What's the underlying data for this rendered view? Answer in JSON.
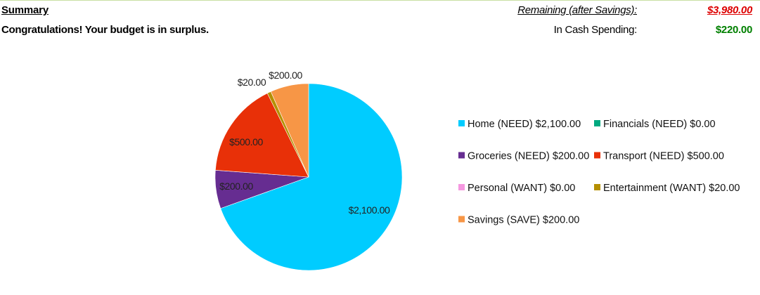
{
  "summary": {
    "title": "Summary",
    "message": "Congratulations! Your budget is in surplus.",
    "remaining_label": "Remaining (after Savings):",
    "remaining_value": "$3,980.00",
    "cash_label": "In Cash Spending:",
    "cash_value": "$220.00"
  },
  "colors": {
    "remaining_value": "#dd0000",
    "cash_value": "#008000"
  },
  "chart_data": {
    "type": "pie",
    "title": "",
    "start_angle_deg": 0,
    "direction": "clockwise",
    "slices": [
      {
        "name": "Home (NEED)",
        "value": 2100,
        "value_label": "$2,100.00",
        "legend": "Home (NEED) $2,100.00",
        "color": "#00ccff",
        "data_label": "$2,100.00"
      },
      {
        "name": "Financials (NEED)",
        "value": 0,
        "value_label": "$0.00",
        "legend": "Financials (NEED) $0.00",
        "color": "#00a980",
        "data_label": ""
      },
      {
        "name": "Groceries (NEED)",
        "value": 200,
        "value_label": "$200.00",
        "legend": "Groceries (NEED) $200.00",
        "color": "#662d91",
        "data_label": "$200.00"
      },
      {
        "name": "Transport (NEED)",
        "value": 500,
        "value_label": "$500.00",
        "legend": "Transport (NEED) $500.00",
        "color": "#e83008",
        "data_label": "$500.00"
      },
      {
        "name": "Personal (WANT)",
        "value": 0,
        "value_label": "$0.00",
        "legend": "Personal (WANT) $0.00",
        "color": "#f598e0",
        "data_label": ""
      },
      {
        "name": "Entertainment (WANT)",
        "value": 20,
        "value_label": "$20.00",
        "legend": "Entertainment (WANT) $20.00",
        "color": "#b58f00",
        "data_label": "$20.00"
      },
      {
        "name": "Savings (SAVE)",
        "value": 200,
        "value_label": "$200.00",
        "legend": "Savings (SAVE) $200.00",
        "color": "#f79646",
        "data_label": "$200.00"
      }
    ],
    "legend_position": "right",
    "legend_columns": 2
  }
}
